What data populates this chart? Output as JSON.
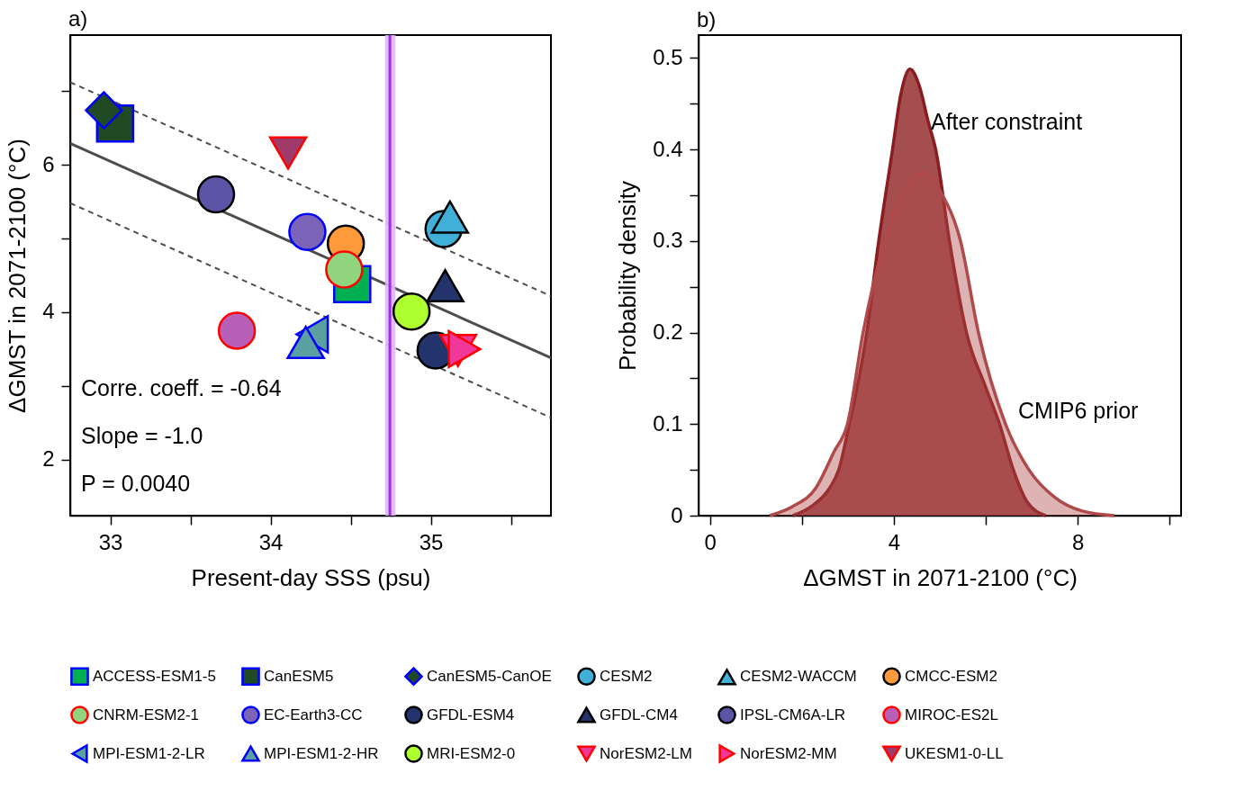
{
  "chart_data": [
    {
      "type": "scatter",
      "title": "a)",
      "xlabel": "Present-day SSS (psu)",
      "ylabel": "ΔGMST in 2071-2100 (°C)",
      "xlim": [
        32.75,
        35.75
      ],
      "ylim": [
        1.24,
        7.76
      ],
      "xticks": [
        33,
        {
          "value": 33.5,
          "label": null
        },
        34,
        {
          "value": 34.5,
          "label": null
        },
        35,
        {
          "value": 35.5,
          "label": null
        }
      ],
      "yticks": [
        2,
        {
          "value": 3,
          "label": null
        },
        4,
        {
          "value": 5,
          "label": null
        },
        6,
        {
          "value": 7,
          "label": null
        }
      ],
      "grid": false,
      "legend": "bottom",
      "series": [
        {
          "name": "ACCESS-ESM1-5",
          "color": "#00b050",
          "marker": "square",
          "x": [
            34.51
          ],
          "values": [
            4.38
          ]
        },
        {
          "name": "CanESM5",
          "color": "#1f4a24",
          "marker": "square",
          "x": [
            33.03
          ],
          "values": [
            6.56
          ]
        },
        {
          "name": "CanESM5-CanOE",
          "color": "#1f4a24",
          "marker": "diamond",
          "x": [
            32.96
          ],
          "values": [
            6.74
          ]
        },
        {
          "name": "CESM2",
          "color": "#40b0d8",
          "marker": "circle",
          "x": [
            35.08
          ],
          "values": [
            5.13
          ]
        },
        {
          "name": "CESM2-WACCM",
          "color": "#40b0d8",
          "marker": "triangle",
          "x": [
            35.12
          ],
          "values": [
            5.29
          ]
        },
        {
          "name": "CMCC-ESM2",
          "color": "#ff9a3a",
          "marker": "circle",
          "x": [
            34.47
          ],
          "values": [
            4.93
          ]
        },
        {
          "name": "CNRM-ESM2-1",
          "color": "#90d47e",
          "marker": "circle",
          "x": [
            34.46
          ],
          "values": [
            4.58
          ]
        },
        {
          "name": "EC-Earth3-CC",
          "color": "#7b63b8",
          "marker": "circle",
          "x": [
            34.23
          ],
          "values": [
            5.09
          ]
        },
        {
          "name": "GFDL-ESM4",
          "color": "#22346b",
          "marker": "circle",
          "x": [
            35.03
          ],
          "values": [
            3.48
          ]
        },
        {
          "name": "GFDL-CM4",
          "color": "#22346b",
          "marker": "triangle",
          "x": [
            35.09
          ],
          "values": [
            4.36
          ]
        },
        {
          "name": "IPSL-CM6A-LR",
          "color": "#5b55a8",
          "marker": "circle",
          "x": [
            33.66
          ],
          "values": [
            5.6
          ]
        },
        {
          "name": "MIROC-ES2L",
          "color": "#b860b8",
          "marker": "circle",
          "x": [
            33.79
          ],
          "values": [
            3.75
          ]
        },
        {
          "name": "MPI-ESM1-2-LR",
          "color": "#5aa0a0",
          "marker": "triangle-left",
          "x": [
            34.26
          ],
          "values": [
            3.7
          ]
        },
        {
          "name": "MPI-ESM1-2-HR",
          "color": "#5aa0a0",
          "marker": "triangle",
          "x": [
            34.22
          ],
          "values": [
            3.59
          ]
        },
        {
          "name": "MRI-ESM2-0",
          "color": "#adff2f",
          "marker": "circle",
          "x": [
            34.88
          ],
          "values": [
            4.01
          ]
        },
        {
          "name": "NorESM2-LM",
          "color": "#f0389a",
          "marker": "triangle-down",
          "x": [
            35.17
          ],
          "values": [
            3.48
          ]
        },
        {
          "name": "NorESM2-MM",
          "color": "#f0389a",
          "marker": "triangle-right",
          "x": [
            35.21
          ],
          "values": [
            3.5
          ]
        },
        {
          "name": "UKESM1-0-LL",
          "color": "#a03a6a",
          "marker": "triangle-down",
          "x": [
            34.11
          ],
          "values": [
            6.16
          ]
        },
        {
          "type": "line",
          "color": "#4d4d4d",
          "line_style": "solid",
          "x": [
            32.75,
            35.75
          ],
          "values": [
            6.29,
            3.38
          ]
        },
        {
          "type": "line",
          "color": "#4d4d4d",
          "line_style": "dashed",
          "x": [
            32.75,
            35.75
          ],
          "values": [
            7.12,
            4.22
          ]
        },
        {
          "type": "line",
          "color": "#4d4d4d",
          "line_style": "dashed",
          "x": [
            32.75,
            35.75
          ],
          "values": [
            5.48,
            2.57
          ]
        }
      ],
      "ref_lines": [
        {
          "axis": "x",
          "value": 34.745,
          "color": "#9b30e0"
        }
      ],
      "bands": [
        {
          "axis": "x",
          "from": 34.715,
          "to": 34.78,
          "color": "#dcb8f5"
        }
      ],
      "annotations": [
        "Corre. coeff. = -0.64",
        "Slope =  -1.0",
        "P = 0.0040"
      ]
    },
    {
      "type": "area",
      "title": "b)",
      "xlabel": "ΔGMST in 2071-2100 (°C)",
      "ylabel": "Probability density",
      "xlim": [
        -0.25,
        10.25
      ],
      "ylim": [
        0,
        0.525
      ],
      "xticks": [
        0,
        {
          "value": 2,
          "label": null
        },
        4,
        {
          "value": 6,
          "label": null
        },
        8,
        {
          "value": 10,
          "label": null
        }
      ],
      "yticks": [
        0,
        {
          "value": 0.05,
          "label": null
        },
        0.1,
        {
          "value": 0.15,
          "label": null
        },
        0.2,
        {
          "value": 0.25,
          "label": null
        },
        0.3,
        {
          "value": 0.35,
          "label": null
        },
        0.4,
        {
          "value": 0.45,
          "label": null
        },
        0.5
      ],
      "grid": false,
      "series": [
        {
          "color": "#8b1c1f",
          "x": [
            1.8,
            2.2,
            2.6,
            2.8,
            3.03,
            3.2,
            3.41,
            3.67,
            3.97,
            4.15,
            4.35,
            4.55,
            4.75,
            4.91,
            5.21,
            5.58,
            6.0,
            6.3,
            6.6,
            6.9,
            7.3
          ],
          "values": [
            0,
            0.01,
            0.03,
            0.05,
            0.1,
            0.14,
            0.2,
            0.3,
            0.4,
            0.46,
            0.488,
            0.47,
            0.43,
            0.4,
            0.3,
            0.2,
            0.14,
            0.1,
            0.05,
            0.015,
            0
          ]
        },
        {
          "color": "#b04a4a",
          "x": [
            1.3,
            1.8,
            2.3,
            2.7,
            2.99,
            3.33,
            3.8,
            4.2,
            4.69,
            5.0,
            5.45,
            5.84,
            6.43,
            6.94,
            7.5,
            8.1,
            8.8
          ],
          "values": [
            0,
            0.01,
            0.03,
            0.07,
            0.1,
            0.2,
            0.3,
            0.355,
            0.375,
            0.355,
            0.3,
            0.2,
            0.1,
            0.05,
            0.02,
            0.005,
            0
          ]
        }
      ],
      "annotations": [
        "After constraint",
        "CMIP6 prior"
      ]
    }
  ]
}
